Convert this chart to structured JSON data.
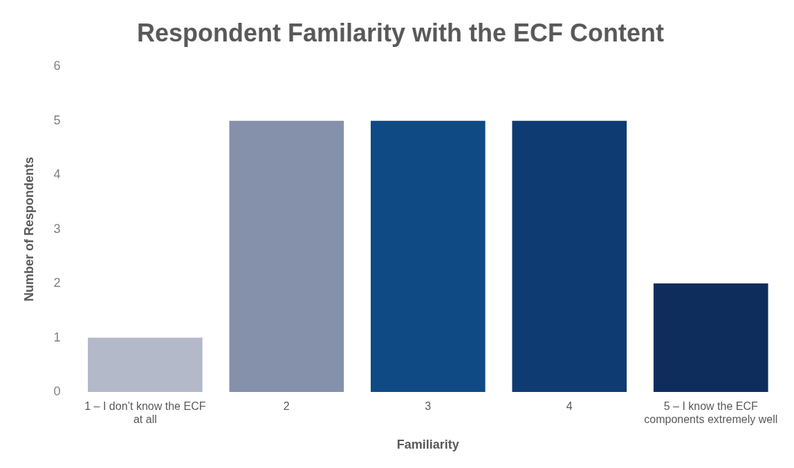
{
  "chart_data": {
    "type": "bar",
    "title": "Respondent Familarity with the ECF Content",
    "xlabel": "Familiarity",
    "ylabel": "Number of Respondents",
    "categories": [
      "1 – I don’t know the ECF at all",
      "2",
      "3",
      "4",
      "5 – I know the ECF components extremely well"
    ],
    "values": [
      1,
      5,
      5,
      5,
      2
    ],
    "colors": [
      "#b3b9c8",
      "#8591aa",
      "#0f4a85",
      "#0e3b72",
      "#0f2d5c"
    ],
    "ylim": [
      0,
      6
    ],
    "yticks": [
      0,
      1,
      2,
      3,
      4,
      5,
      6
    ],
    "grid": false,
    "legend": false
  }
}
